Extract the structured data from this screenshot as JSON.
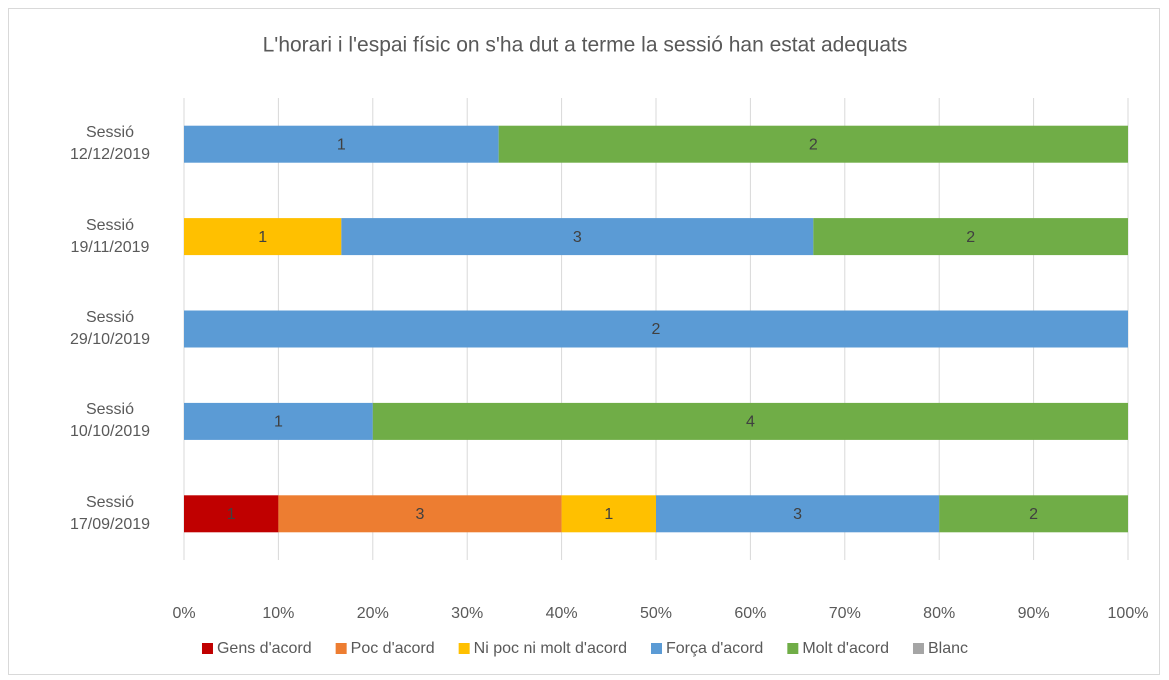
{
  "chart_data": {
    "type": "bar",
    "orientation": "horizontal",
    "stacking": "percent",
    "title": "L'horari i l'espai físic on s'ha dut a terme la sessió han estat adequats",
    "categories": [
      "Sessió 12/12/2019",
      "Sessió 19/11/2019",
      "Sessió 29/10/2019",
      "Sessió 10/10/2019",
      "Sessió 17/09/2019"
    ],
    "series": [
      {
        "name": "Gens d'acord",
        "color": "#c00000",
        "values": [
          0,
          0,
          0,
          0,
          1
        ]
      },
      {
        "name": "Poc d'acord",
        "color": "#ed7d31",
        "values": [
          0,
          0,
          0,
          0,
          3
        ]
      },
      {
        "name": "Ni poc ni molt d'acord",
        "color": "#ffc000",
        "values": [
          0,
          1,
          0,
          0,
          1
        ]
      },
      {
        "name": "Força d'acord",
        "color": "#5b9bd5",
        "values": [
          1,
          3,
          2,
          1,
          3
        ]
      },
      {
        "name": "Molt d'acord",
        "color": "#70ad47",
        "values": [
          2,
          2,
          0,
          4,
          2
        ]
      },
      {
        "name": "Blanc",
        "color": "#a5a5a5",
        "values": [
          0,
          0,
          0,
          0,
          0
        ]
      }
    ],
    "xlim": [
      0,
      100
    ],
    "xticks": [
      {
        "value": 0,
        "label": "0%"
      },
      {
        "value": 10,
        "label": "10%"
      },
      {
        "value": 20,
        "label": "20%"
      },
      {
        "value": 30,
        "label": "30%"
      },
      {
        "value": 40,
        "label": "40%"
      },
      {
        "value": 50,
        "label": "50%"
      },
      {
        "value": 60,
        "label": "60%"
      },
      {
        "value": 70,
        "label": "70%"
      },
      {
        "value": 80,
        "label": "80%"
      },
      {
        "value": 90,
        "label": "90%"
      },
      {
        "value": 100,
        "label": "100%"
      }
    ],
    "grid": true,
    "legend": "bottom"
  }
}
